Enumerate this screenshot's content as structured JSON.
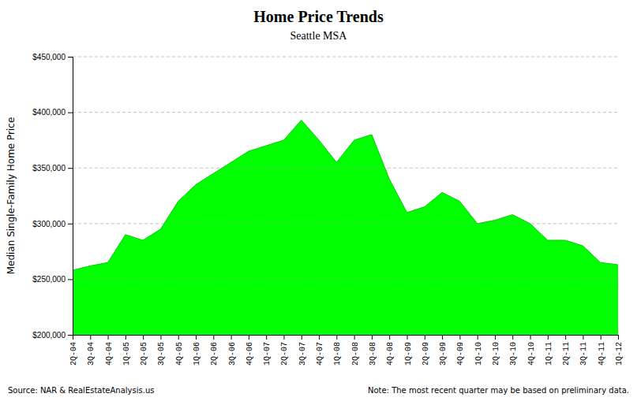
{
  "chart_data": {
    "type": "area",
    "title": "Home Price Trends",
    "subtitle": "Seattle MSA",
    "y_label": "Median Single-Family Home Price",
    "annotations": [
      "Source: NAR & RealEstateAnalysis.us",
      "Note: The most recent quarter may be based on preliminary data."
    ],
    "color": "#00ff00",
    "categories": [
      "2Q-04",
      "3Q-04",
      "4Q-04",
      "1Q-05",
      "2Q-05",
      "3Q-05",
      "4Q-05",
      "1Q-06",
      "2Q-06",
      "3Q-06",
      "4Q-06",
      "1Q-07",
      "2Q-07",
      "3Q-07",
      "4Q-07",
      "1Q-08",
      "2Q-08",
      "3Q-08",
      "4Q-08",
      "1Q-09",
      "2Q-09",
      "3Q-09",
      "4Q-09",
      "1Q-10",
      "2Q-10",
      "3Q-10",
      "4Q-10",
      "1Q-11",
      "2Q-11",
      "3Q-11",
      "4Q-11",
      "1Q-12"
    ],
    "values": [
      258000,
      262000,
      265000,
      290000,
      285000,
      295000,
      320000,
      335000,
      345000,
      355000,
      365000,
      370000,
      375000,
      393000,
      375000,
      355000,
      375000,
      380000,
      340000,
      310000,
      315000,
      328000,
      320000,
      300000,
      303000,
      308000,
      300000,
      285000,
      285000,
      280000,
      265000,
      263000
    ],
    "ylim": [
      200000,
      450000
    ],
    "yticks": [
      {
        "value": 200000,
        "label": "$200,000"
      },
      {
        "value": 250000,
        "label": "$250,000"
      },
      {
        "value": 300000,
        "label": "$300,000"
      },
      {
        "value": 350000,
        "label": "$350,000"
      },
      {
        "value": 400000,
        "label": "$400,000"
      },
      {
        "value": 450000,
        "label": "$450,000"
      }
    ],
    "grid": true
  }
}
